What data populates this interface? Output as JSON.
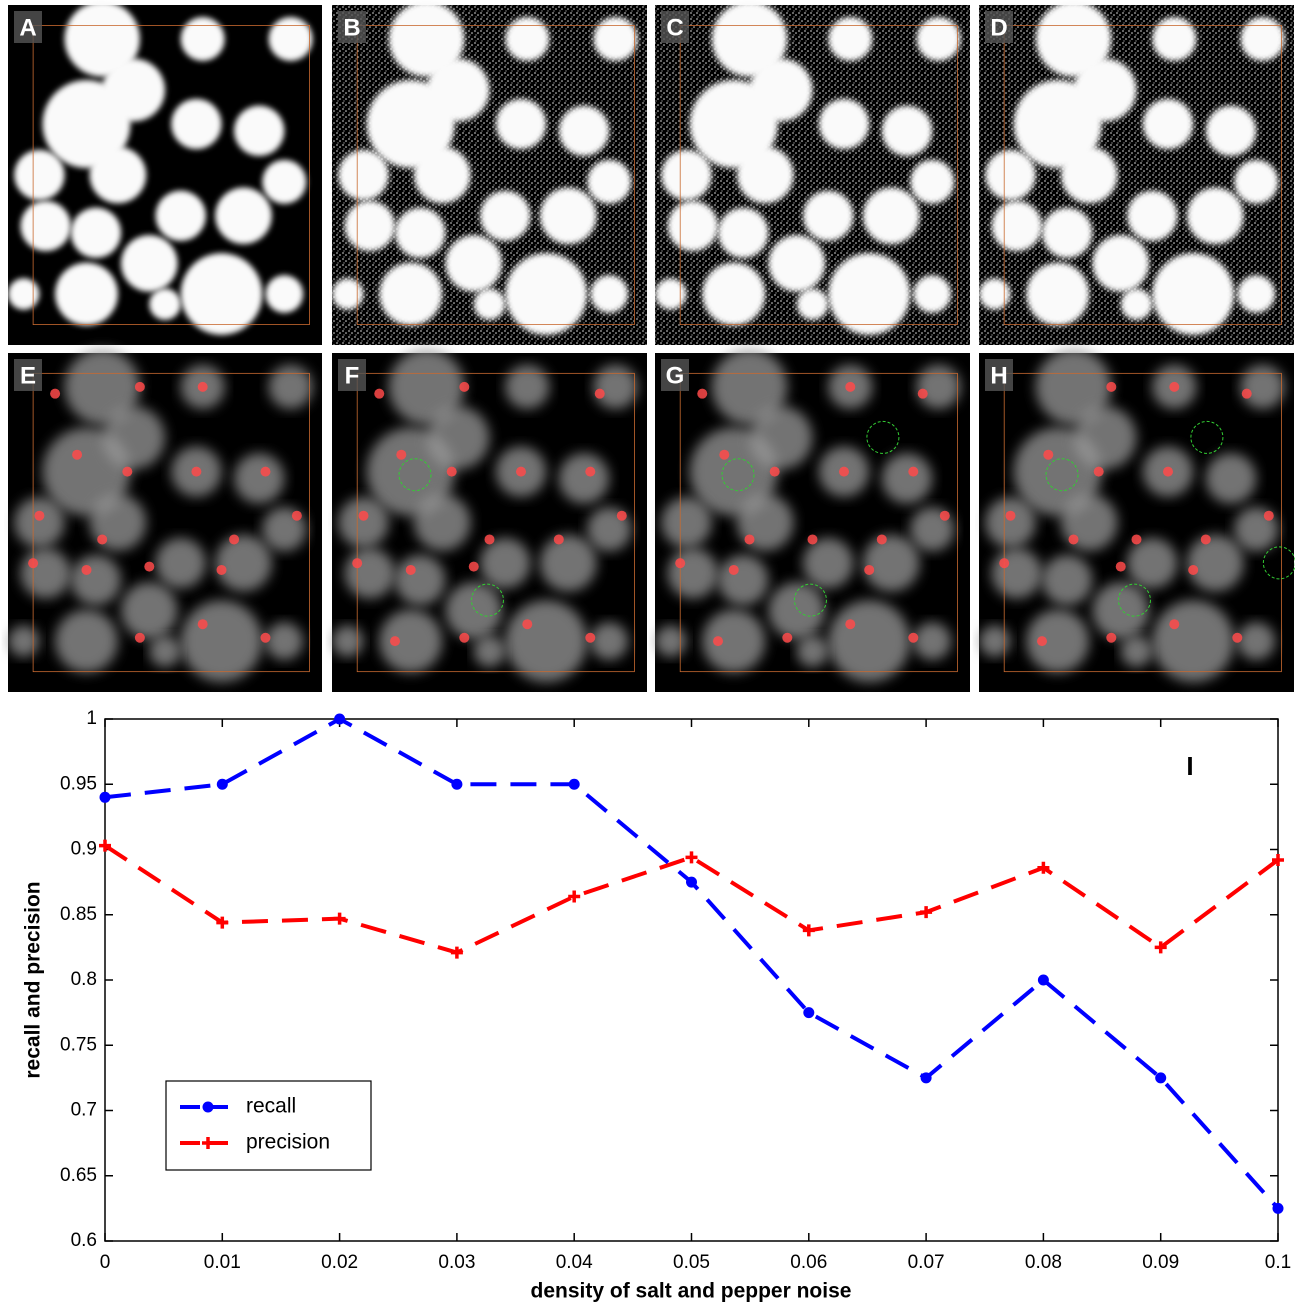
{
  "panels": {
    "labels": [
      "A",
      "B",
      "C",
      "D",
      "E",
      "F",
      "G",
      "H"
    ]
  },
  "chart_data": {
    "type": "line",
    "panel_label": "I",
    "x_label": "density of salt and pepper noise",
    "y_label": "recall and precision",
    "x": [
      0,
      0.01,
      0.02,
      0.03,
      0.04,
      0.05,
      0.06,
      0.07,
      0.08,
      0.09,
      0.1
    ],
    "series": [
      {
        "name": "recall",
        "color": "#0000ff",
        "marker": "circle",
        "values": [
          0.94,
          0.95,
          1.0,
          0.95,
          0.95,
          0.875,
          0.775,
          0.725,
          0.8,
          0.725,
          0.625
        ]
      },
      {
        "name": "precision",
        "color": "#ff0000",
        "marker": "plus",
        "values": [
          0.903,
          0.844,
          0.847,
          0.821,
          0.864,
          0.894,
          0.838,
          0.852,
          0.886,
          0.825,
          0.892
        ]
      }
    ],
    "xlim": [
      0,
      0.1
    ],
    "ylim": [
      0.6,
      1
    ],
    "xticks": [
      0,
      0.01,
      0.02,
      0.03,
      0.04,
      0.05,
      0.06,
      0.07,
      0.08,
      0.09,
      0.1
    ],
    "yticks": [
      0.6,
      0.65,
      0.7,
      0.75,
      0.8,
      0.85,
      0.9,
      0.95,
      1
    ],
    "legend": "lower-left",
    "line_style": "dashed"
  }
}
